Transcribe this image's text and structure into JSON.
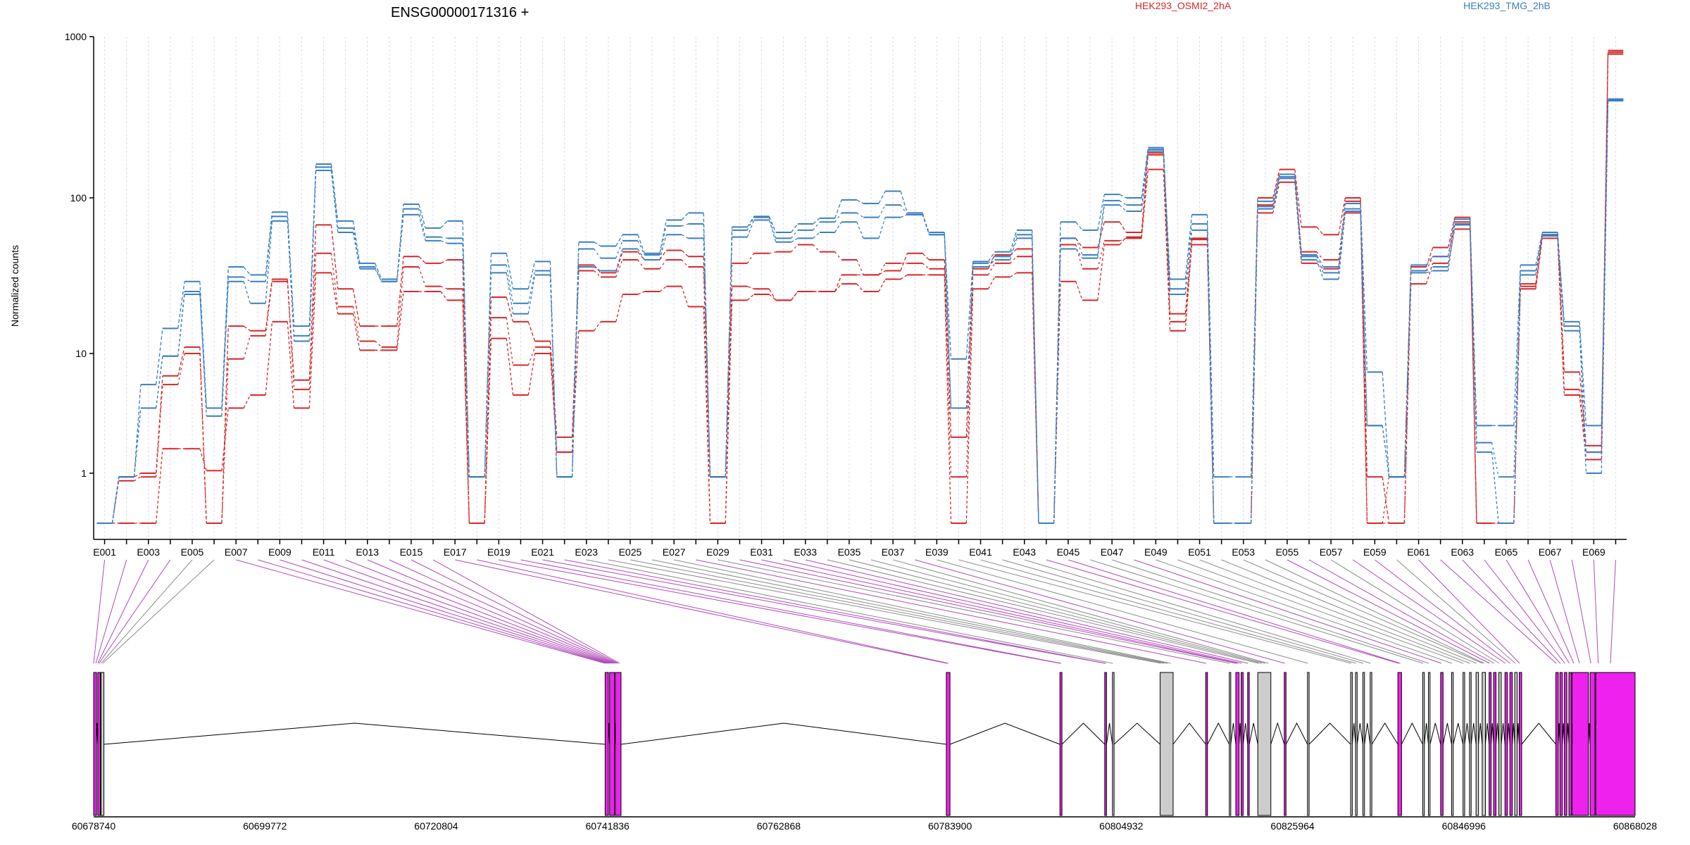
{
  "title": "ENSG00000171316 +",
  "ylabel": "Normalized counts",
  "legend": [
    {
      "label": "HEK293_OSMI2_2hA",
      "color": "#d62728"
    },
    {
      "label": "HEK293_TMG_2hB",
      "color": "#3a7fc1"
    }
  ],
  "colors": {
    "osmi": "#d62728",
    "tmg": "#3a7fc1",
    "exon": "#ee22ee",
    "other_feature": "#cccccc",
    "link_exon": "#b04ab8",
    "link_other": "#8c8c8c",
    "grid": "#dcdcf0"
  },
  "chart_data": {
    "type": "line",
    "y_scale": "log",
    "ylim": [
      0.5,
      1000
    ],
    "yticks": [
      1,
      10,
      100,
      1000
    ],
    "ytick_labels": [
      "1",
      "10",
      "100",
      "1000"
    ],
    "x_tick_labels": [
      "E001",
      "E003",
      "E005",
      "E007",
      "E009",
      "E011",
      "E013",
      "E015",
      "E017",
      "E019",
      "E021",
      "E023",
      "E025",
      "E027",
      "E029",
      "E031",
      "E033",
      "E035",
      "E037",
      "E039",
      "E041",
      "E043",
      "E045",
      "E047",
      "E049",
      "E051",
      "E053",
      "E055",
      "E057",
      "E059",
      "E061",
      "E063",
      "E065",
      "E067",
      "E069"
    ],
    "bins": [
      "E001",
      "E002",
      "E003",
      "E004",
      "E005",
      "E006",
      "E007",
      "E008",
      "E009",
      "E010",
      "E011",
      "E012",
      "E013",
      "E014",
      "E015",
      "E016",
      "E017",
      "E018",
      "E019",
      "E020",
      "E021",
      "E022",
      "E023",
      "E024",
      "E025",
      "E026",
      "E027",
      "E028",
      "E029",
      "E030",
      "E031",
      "E032",
      "E033",
      "E034",
      "E035",
      "E036",
      "E037",
      "E038",
      "E039",
      "E040",
      "E041",
      "E042",
      "E043",
      "E044",
      "E045",
      "E046",
      "E047",
      "E048",
      "E049",
      "E050",
      "E051",
      "E052",
      "E053",
      "E054",
      "E055",
      "E056",
      "E057",
      "E058",
      "E059",
      "E060",
      "E061",
      "E062",
      "E063",
      "E064",
      "E065",
      "E066",
      "E067",
      "E068",
      "E069",
      "E070"
    ],
    "series": [
      {
        "name": "HEK293_OSMI2_2hA",
        "color": "#d62728",
        "values": [
          0.5,
          0.95,
          1.0,
          6.5,
          11,
          0.5,
          15,
          14,
          30,
          6,
          67,
          26,
          15,
          15,
          42,
          38,
          40,
          0.5,
          23,
          16,
          12,
          2,
          37,
          33,
          45,
          40,
          46,
          42,
          0.95,
          27,
          26,
          22,
          25,
          25,
          32,
          32,
          34,
          44,
          40,
          2,
          35,
          43,
          47,
          0.5,
          55,
          48,
          70,
          60,
          190,
          18,
          55,
          0.5,
          0.5,
          100,
          150,
          65,
          58,
          100,
          0.95,
          0.5,
          36,
          48,
          75,
          0.5,
          0.5,
          28,
          60,
          7,
          1.7,
          800
        ]
      },
      {
        "name": "HEK293_OSMI2_2hA",
        "color": "#d62728",
        "values": [
          0.5,
          0.9,
          0.95,
          5.5,
          10,
          0.5,
          9,
          13,
          29,
          5,
          44,
          20,
          12,
          11,
          36,
          27,
          26,
          0.5,
          17,
          8,
          11,
          1.5,
          34,
          31,
          40,
          35,
          40,
          36,
          0.5,
          38,
          44,
          45,
          50,
          45,
          40,
          32,
          38,
          38,
          35,
          0.95,
          32,
          38,
          42,
          0.5,
          50,
          35,
          53,
          55,
          185,
          16,
          50,
          0.5,
          0.5,
          90,
          140,
          45,
          40,
          95,
          0.5,
          0.95,
          34,
          42,
          70,
          0.5,
          0.5,
          27,
          58,
          5,
          1.5,
          780
        ]
      },
      {
        "name": "HEK293_OSMI2_2hA",
        "color": "#d62728",
        "values": [
          0.5,
          0.5,
          0.5,
          1.6,
          1.6,
          1.05,
          3.5,
          4.5,
          16,
          3.5,
          33,
          18,
          10.5,
          10.5,
          25,
          25,
          22,
          0.5,
          12.5,
          4.5,
          10,
          1.5,
          14,
          16,
          24,
          25,
          27,
          20,
          0.5,
          22,
          24,
          22,
          25,
          25,
          28,
          25,
          30,
          32,
          32,
          0.5,
          26,
          31,
          33,
          0.5,
          29,
          22,
          50,
          56,
          150,
          14,
          54,
          0.5,
          0.5,
          80,
          125,
          38,
          35,
          80,
          0.5,
          0.5,
          28,
          38,
          63,
          0.5,
          0.5,
          26,
          55,
          4.5,
          1.3,
          820
        ]
      },
      {
        "name": "HEK293_TMG_2hB",
        "color": "#3a7fc1",
        "values": [
          0.5,
          0.95,
          5.5,
          14.5,
          29,
          3.5,
          36,
          32,
          81,
          15,
          162,
          71,
          38,
          30,
          91,
          64,
          71,
          0.95,
          44,
          26,
          39,
          0.95,
          52,
          49,
          58,
          44,
          72,
          80,
          0.95,
          65,
          76,
          60,
          68,
          74,
          97,
          92,
          110,
          80,
          58,
          9,
          39,
          45,
          62,
          0.5,
          70,
          62,
          105,
          100,
          205,
          30,
          78,
          0.95,
          0.95,
          95,
          140,
          43,
          36,
          92,
          7,
          0.95,
          37,
          42,
          73,
          2.5,
          2.5,
          37,
          60,
          16,
          2.5,
          410
        ]
      },
      {
        "name": "HEK293_TMG_2hB",
        "color": "#3a7fc1",
        "values": [
          0.5,
          0.95,
          3.5,
          9.5,
          24,
          3.5,
          31,
          29,
          76,
          13,
          155,
          64,
          36,
          29,
          85,
          56,
          55,
          0.95,
          37,
          21,
          34,
          0.95,
          47,
          41,
          53,
          43,
          66,
          68,
          0.95,
          62,
          75,
          55,
          62,
          70,
          80,
          75,
          90,
          78,
          60,
          3.5,
          38,
          42,
          58,
          0.5,
          55,
          43,
          96,
          90,
          200,
          26,
          68,
          0.5,
          0.5,
          88,
          135,
          42,
          33,
          85,
          2.5,
          0.95,
          34,
          36,
          68,
          1.8,
          0.95,
          34,
          58,
          15,
          1.5,
          400
        ]
      },
      {
        "name": "HEK293_TMG_2hB",
        "color": "#3a7fc1",
        "values": [
          0.5,
          0.95,
          3.5,
          9.5,
          25,
          3,
          29,
          21,
          71,
          12,
          148,
          60,
          35,
          29,
          78,
          53,
          51,
          0.95,
          33,
          18,
          32,
          0.95,
          36,
          34,
          47,
          40,
          58,
          55,
          0.95,
          56,
          72,
          52,
          55,
          60,
          70,
          55,
          75,
          78,
          58,
          3.5,
          36,
          40,
          55,
          0.5,
          47,
          41,
          90,
          82,
          195,
          24,
          62,
          0.5,
          0.5,
          85,
          132,
          40,
          30,
          82,
          2.5,
          0.95,
          33,
          34,
          67,
          1.5,
          0.5,
          32,
          57,
          14,
          1.0,
          405
        ]
      }
    ],
    "genomic_axis": {
      "range": [
        60678740,
        60868028
      ],
      "tick_labels": [
        "60678740",
        "60699772",
        "60720804",
        "60741836",
        "60762868",
        "60783900",
        "60804932",
        "60825964",
        "60846996",
        "60868028"
      ]
    },
    "features": [
      {
        "start": 60678740,
        "end": 60679090,
        "type": "exon"
      },
      {
        "start": 60679250,
        "end": 60679560,
        "type": "exon"
      },
      {
        "start": 60679650,
        "end": 60680000,
        "type": "other"
      },
      {
        "start": 60741550,
        "end": 60741950,
        "type": "exon"
      },
      {
        "start": 60742100,
        "end": 60742700,
        "type": "exon"
      },
      {
        "start": 60742800,
        "end": 60743500,
        "type": "exon"
      },
      {
        "start": 60783450,
        "end": 60783900,
        "type": "exon"
      },
      {
        "start": 60797400,
        "end": 60797650,
        "type": "exon"
      },
      {
        "start": 60802900,
        "end": 60803120,
        "type": "exon"
      },
      {
        "start": 60803850,
        "end": 60804050,
        "type": "other"
      },
      {
        "start": 60809700,
        "end": 60811300,
        "type": "other"
      },
      {
        "start": 60815300,
        "end": 60815520,
        "type": "exon"
      },
      {
        "start": 60818200,
        "end": 60818380,
        "type": "other"
      },
      {
        "start": 60819000,
        "end": 60819400,
        "type": "exon"
      },
      {
        "start": 60819650,
        "end": 60819900,
        "type": "exon"
      },
      {
        "start": 60820450,
        "end": 60820650,
        "type": "exon"
      },
      {
        "start": 60821700,
        "end": 60823300,
        "type": "other"
      },
      {
        "start": 60824950,
        "end": 60825160,
        "type": "exon"
      },
      {
        "start": 60827800,
        "end": 60828000,
        "type": "other"
      },
      {
        "start": 60833100,
        "end": 60833300,
        "type": "other"
      },
      {
        "start": 60833700,
        "end": 60833900,
        "type": "other"
      },
      {
        "start": 60834600,
        "end": 60834800,
        "type": "other"
      },
      {
        "start": 60835500,
        "end": 60835700,
        "type": "other"
      },
      {
        "start": 60838900,
        "end": 60839350,
        "type": "exon"
      },
      {
        "start": 60841950,
        "end": 60842150,
        "type": "other"
      },
      {
        "start": 60842650,
        "end": 60842850,
        "type": "other"
      },
      {
        "start": 60844150,
        "end": 60844450,
        "type": "exon"
      },
      {
        "start": 60845500,
        "end": 60845700,
        "type": "other"
      },
      {
        "start": 60846900,
        "end": 60847100,
        "type": "other"
      },
      {
        "start": 60847700,
        "end": 60847900,
        "type": "other"
      },
      {
        "start": 60848500,
        "end": 60848800,
        "type": "other"
      },
      {
        "start": 60849250,
        "end": 60849650,
        "type": "other"
      },
      {
        "start": 60850100,
        "end": 60850350,
        "type": "exon"
      },
      {
        "start": 60850650,
        "end": 60850950,
        "type": "exon"
      },
      {
        "start": 60851300,
        "end": 60851600,
        "type": "other"
      },
      {
        "start": 60852050,
        "end": 60852350,
        "type": "exon"
      },
      {
        "start": 60852650,
        "end": 60852950,
        "type": "exon"
      },
      {
        "start": 60853250,
        "end": 60853550,
        "type": "other"
      },
      {
        "start": 60853800,
        "end": 60854100,
        "type": "exon"
      },
      {
        "start": 60858300,
        "end": 60858600,
        "type": "exon"
      },
      {
        "start": 60858800,
        "end": 60859100,
        "type": "exon"
      },
      {
        "start": 60859350,
        "end": 60859650,
        "type": "exon"
      },
      {
        "start": 60859900,
        "end": 60860200,
        "type": "exon"
      },
      {
        "start": 60860300,
        "end": 60862300,
        "type": "exon"
      },
      {
        "start": 60862500,
        "end": 60863100,
        "type": "exon"
      },
      {
        "start": 60863200,
        "end": 60868028,
        "type": "exon"
      }
    ],
    "exon_bin_starts": [
      60678740,
      60679000,
      60679250,
      60679400,
      60679650,
      60679850,
      60741550,
      60741750,
      60741950,
      60742150,
      60742350,
      60742550,
      60742750,
      60742950,
      60743150,
      60743350,
      60783500,
      60783700,
      60797450,
      60797550,
      60802950,
      60803050,
      60803900,
      60809800,
      60810200,
      60810600,
      60811000,
      60815350,
      60818250,
      60819050,
      60819250,
      60819700,
      60820500,
      60821800,
      60822200,
      60822600,
      60823000,
      60825000,
      60827850,
      60833150,
      60833750,
      60834650,
      60835550,
      60839000,
      60839200,
      60842000,
      60842700,
      60844250,
      60845550,
      60846950,
      60847750,
      60848550,
      60849300,
      60849500,
      60850150,
      60850700,
      60851350,
      60852100,
      60852700,
      60853300,
      60853850,
      60858350,
      60858850,
      60859400,
      60859950,
      60860500,
      60861200,
      60862600,
      60863500,
      60865000
    ]
  }
}
